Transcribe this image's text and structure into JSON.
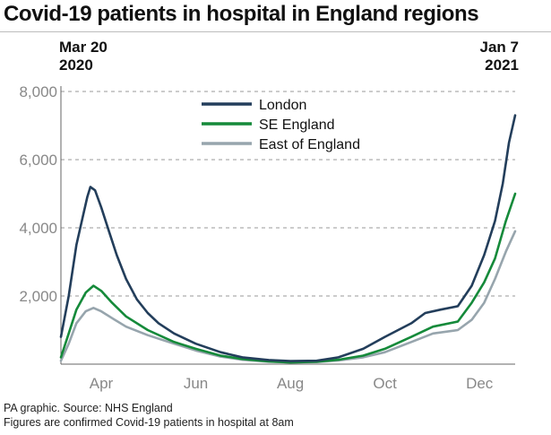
{
  "title": "Covid-19 patients in hospital in England regions",
  "date_start": {
    "line1": "Mar 20",
    "line2": "2020"
  },
  "date_end": {
    "line1": "Jan 7",
    "line2": "2021"
  },
  "footer": {
    "source": "PA graphic. Source: NHS England",
    "note": "Figures are confirmed Covid-19 patients in hospital at 8am"
  },
  "colors": {
    "London": "#233e5b",
    "SE England": "#158a3a",
    "East of England": "#97a5ad",
    "grid": "#9a9a9a",
    "axis": "#666666",
    "tick_text": "#888888"
  },
  "chart_data": {
    "type": "line",
    "title": "Covid-19 patients in hospital in England regions",
    "xlabel": "",
    "ylabel": "",
    "xlim": [
      "2020-03-20",
      "2021-01-07"
    ],
    "ylim": [
      0,
      8000
    ],
    "yticks": [
      2000,
      4000,
      6000,
      8000
    ],
    "ytick_labels": [
      "2,000",
      "4,000",
      "6,000",
      "8,000"
    ],
    "xticks": [
      {
        "label": "Apr",
        "date": "2020-04-15"
      },
      {
        "label": "Jun",
        "date": "2020-06-15"
      },
      {
        "label": "Aug",
        "date": "2020-08-15"
      },
      {
        "label": "Oct",
        "date": "2020-10-15"
      },
      {
        "label": "Dec",
        "date": "2020-12-15"
      }
    ],
    "grid": true,
    "legend": "top-center",
    "series": [
      {
        "name": "London",
        "points": [
          [
            "2020-03-20",
            800
          ],
          [
            "2020-03-25",
            2000
          ],
          [
            "2020-03-30",
            3500
          ],
          [
            "2020-04-03",
            4300
          ],
          [
            "2020-04-06",
            4900
          ],
          [
            "2020-04-08",
            5200
          ],
          [
            "2020-04-11",
            5100
          ],
          [
            "2020-04-15",
            4600
          ],
          [
            "2020-04-20",
            3900
          ],
          [
            "2020-04-25",
            3200
          ],
          [
            "2020-05-01",
            2500
          ],
          [
            "2020-05-08",
            1900
          ],
          [
            "2020-05-15",
            1500
          ],
          [
            "2020-05-22",
            1200
          ],
          [
            "2020-06-01",
            900
          ],
          [
            "2020-06-15",
            600
          ],
          [
            "2020-07-01",
            350
          ],
          [
            "2020-07-15",
            200
          ],
          [
            "2020-08-01",
            120
          ],
          [
            "2020-08-15",
            90
          ],
          [
            "2020-09-01",
            100
          ],
          [
            "2020-09-15",
            200
          ],
          [
            "2020-10-01",
            450
          ],
          [
            "2020-10-15",
            800
          ],
          [
            "2020-11-01",
            1200
          ],
          [
            "2020-11-10",
            1500
          ],
          [
            "2020-11-20",
            1600
          ],
          [
            "2020-12-01",
            1700
          ],
          [
            "2020-12-10",
            2300
          ],
          [
            "2020-12-18",
            3200
          ],
          [
            "2020-12-25",
            4200
          ],
          [
            "2020-12-30",
            5300
          ],
          [
            "2021-01-03",
            6500
          ],
          [
            "2021-01-07",
            7300
          ]
        ]
      },
      {
        "name": "SE England",
        "points": [
          [
            "2020-03-20",
            200
          ],
          [
            "2020-03-25",
            900
          ],
          [
            "2020-03-30",
            1600
          ],
          [
            "2020-04-05",
            2100
          ],
          [
            "2020-04-10",
            2300
          ],
          [
            "2020-04-15",
            2150
          ],
          [
            "2020-04-22",
            1800
          ],
          [
            "2020-05-01",
            1400
          ],
          [
            "2020-05-15",
            1000
          ],
          [
            "2020-06-01",
            650
          ],
          [
            "2020-06-15",
            450
          ],
          [
            "2020-07-01",
            250
          ],
          [
            "2020-07-15",
            150
          ],
          [
            "2020-08-01",
            80
          ],
          [
            "2020-08-15",
            50
          ],
          [
            "2020-09-01",
            70
          ],
          [
            "2020-09-15",
            130
          ],
          [
            "2020-10-01",
            250
          ],
          [
            "2020-10-15",
            450
          ],
          [
            "2020-11-01",
            800
          ],
          [
            "2020-11-15",
            1100
          ],
          [
            "2020-12-01",
            1250
          ],
          [
            "2020-12-10",
            1800
          ],
          [
            "2020-12-18",
            2400
          ],
          [
            "2020-12-25",
            3100
          ],
          [
            "2021-01-01",
            4200
          ],
          [
            "2021-01-07",
            5000
          ]
        ]
      },
      {
        "name": "East of England",
        "points": [
          [
            "2020-03-20",
            100
          ],
          [
            "2020-03-25",
            600
          ],
          [
            "2020-03-30",
            1200
          ],
          [
            "2020-04-05",
            1550
          ],
          [
            "2020-04-10",
            1650
          ],
          [
            "2020-04-15",
            1550
          ],
          [
            "2020-04-22",
            1350
          ],
          [
            "2020-05-01",
            1100
          ],
          [
            "2020-05-15",
            850
          ],
          [
            "2020-06-01",
            600
          ],
          [
            "2020-06-15",
            400
          ],
          [
            "2020-07-01",
            220
          ],
          [
            "2020-07-15",
            130
          ],
          [
            "2020-08-01",
            70
          ],
          [
            "2020-08-15",
            50
          ],
          [
            "2020-09-01",
            60
          ],
          [
            "2020-09-15",
            110
          ],
          [
            "2020-10-01",
            200
          ],
          [
            "2020-10-15",
            350
          ],
          [
            "2020-11-01",
            650
          ],
          [
            "2020-11-15",
            900
          ],
          [
            "2020-12-01",
            1000
          ],
          [
            "2020-12-10",
            1300
          ],
          [
            "2020-12-18",
            1800
          ],
          [
            "2020-12-25",
            2500
          ],
          [
            "2021-01-01",
            3300
          ],
          [
            "2021-01-07",
            3900
          ]
        ]
      }
    ]
  }
}
